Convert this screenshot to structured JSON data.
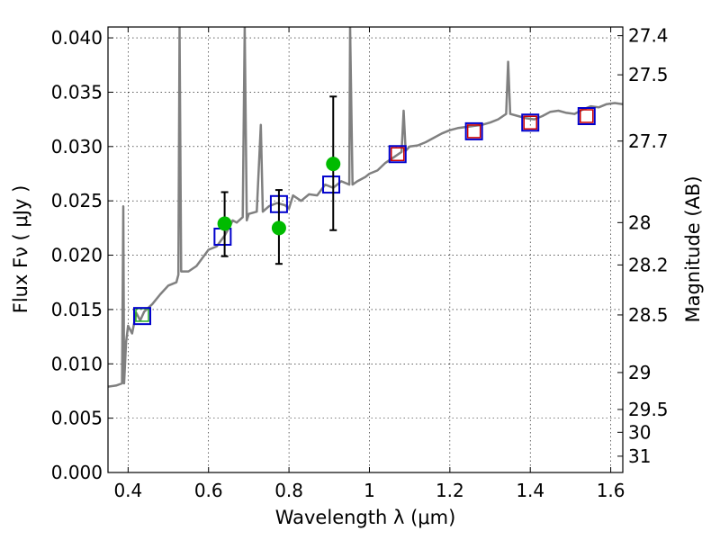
{
  "chart_data": {
    "type": "scatter",
    "xlabel": "Wavelength  λ (μm)",
    "ylabel": "Flux  Fν  ( μJy )",
    "y2label": "Magnitude (AB)",
    "xlim": [
      0.35,
      1.63
    ],
    "ylim": [
      0.0,
      0.041
    ],
    "grid": true,
    "x_ticks": [
      0.4,
      0.6,
      0.8,
      1.0,
      1.2,
      1.4,
      1.6
    ],
    "x_tick_labels": [
      "0.4",
      "0.6",
      "0.8",
      "1",
      "1.2",
      "1.4",
      "1.6"
    ],
    "y_ticks": [
      0.0,
      0.005,
      0.01,
      0.015,
      0.02,
      0.025,
      0.03,
      0.035,
      0.04
    ],
    "y_tick_labels": [
      "0.000",
      "0.005",
      "0.010",
      "0.015",
      "0.020",
      "0.025",
      "0.030",
      "0.035",
      "0.040"
    ],
    "y2_ticks": [
      {
        "label": "27.4",
        "flux": 0.0402
      },
      {
        "label": "27.5",
        "flux": 0.0366
      },
      {
        "label": "27.7",
        "flux": 0.0305
      },
      {
        "label": "28",
        "flux": 0.023
      },
      {
        "label": "28.2",
        "flux": 0.0191
      },
      {
        "label": "28.5",
        "flux": 0.0145
      },
      {
        "label": "29",
        "flux": 0.0092
      },
      {
        "label": "29.5",
        "flux": 0.0058
      },
      {
        "label": "30",
        "flux": 0.0037
      },
      {
        "label": "31",
        "flux": 0.0015
      }
    ],
    "spectrum": {
      "color": "#808080",
      "points": [
        [
          0.35,
          0.0079
        ],
        [
          0.37,
          0.008
        ],
        [
          0.385,
          0.0082
        ],
        [
          0.388,
          0.0245
        ],
        [
          0.39,
          0.0082
        ],
        [
          0.395,
          0.012
        ],
        [
          0.4,
          0.0135
        ],
        [
          0.41,
          0.0128
        ],
        [
          0.42,
          0.0147
        ],
        [
          0.43,
          0.014
        ],
        [
          0.44,
          0.0148
        ],
        [
          0.46,
          0.0155
        ],
        [
          0.48,
          0.0164
        ],
        [
          0.5,
          0.0172
        ],
        [
          0.52,
          0.0175
        ],
        [
          0.525,
          0.0182
        ],
        [
          0.528,
          0.041
        ],
        [
          0.532,
          0.0185
        ],
        [
          0.55,
          0.0185
        ],
        [
          0.57,
          0.019
        ],
        [
          0.6,
          0.0205
        ],
        [
          0.62,
          0.0208
        ],
        [
          0.64,
          0.0218
        ],
        [
          0.655,
          0.0228
        ],
        [
          0.66,
          0.0232
        ],
        [
          0.67,
          0.023
        ],
        [
          0.685,
          0.0235
        ],
        [
          0.69,
          0.041
        ],
        [
          0.695,
          0.0232
        ],
        [
          0.7,
          0.0238
        ],
        [
          0.72,
          0.024
        ],
        [
          0.73,
          0.032
        ],
        [
          0.735,
          0.024
        ],
        [
          0.75,
          0.0245
        ],
        [
          0.77,
          0.0248
        ],
        [
          0.79,
          0.0246
        ],
        [
          0.8,
          0.0243
        ],
        [
          0.81,
          0.0255
        ],
        [
          0.83,
          0.025
        ],
        [
          0.85,
          0.0256
        ],
        [
          0.87,
          0.0255
        ],
        [
          0.89,
          0.0265
        ],
        [
          0.91,
          0.0262
        ],
        [
          0.93,
          0.0268
        ],
        [
          0.95,
          0.0265
        ],
        [
          0.952,
          0.041
        ],
        [
          0.958,
          0.0265
        ],
        [
          0.97,
          0.0268
        ],
        [
          0.99,
          0.0272
        ],
        [
          1.0,
          0.0275
        ],
        [
          1.02,
          0.0278
        ],
        [
          1.04,
          0.0285
        ],
        [
          1.06,
          0.029
        ],
        [
          1.08,
          0.0295
        ],
        [
          1.085,
          0.0333
        ],
        [
          1.09,
          0.0296
        ],
        [
          1.1,
          0.03
        ],
        [
          1.12,
          0.0301
        ],
        [
          1.14,
          0.0304
        ],
        [
          1.16,
          0.0308
        ],
        [
          1.18,
          0.0312
        ],
        [
          1.2,
          0.0315
        ],
        [
          1.22,
          0.0317
        ],
        [
          1.24,
          0.0318
        ],
        [
          1.26,
          0.0319
        ],
        [
          1.28,
          0.032
        ],
        [
          1.3,
          0.0322
        ],
        [
          1.32,
          0.0325
        ],
        [
          1.34,
          0.033
        ],
        [
          1.345,
          0.0378
        ],
        [
          1.35,
          0.033
        ],
        [
          1.37,
          0.0328
        ],
        [
          1.39,
          0.0326
        ],
        [
          1.41,
          0.0325
        ],
        [
          1.43,
          0.0328
        ],
        [
          1.45,
          0.0332
        ],
        [
          1.47,
          0.0333
        ],
        [
          1.49,
          0.0331
        ],
        [
          1.51,
          0.033
        ],
        [
          1.53,
          0.0334
        ],
        [
          1.55,
          0.0337
        ],
        [
          1.57,
          0.0336
        ],
        [
          1.59,
          0.0339
        ],
        [
          1.61,
          0.034
        ],
        [
          1.63,
          0.0339
        ]
      ]
    },
    "model_photometry": {
      "marker": "open square",
      "color": "#0000cc",
      "points": [
        [
          0.435,
          0.0144
        ],
        [
          0.635,
          0.0217
        ],
        [
          0.775,
          0.0247
        ],
        [
          0.905,
          0.0265
        ],
        [
          1.07,
          0.0293
        ],
        [
          1.26,
          0.0314
        ],
        [
          1.4,
          0.0322
        ],
        [
          1.54,
          0.0328
        ]
      ]
    },
    "inner_squares": [
      {
        "x": 0.435,
        "y": 0.0145,
        "color": "#22aa22"
      },
      {
        "x": 1.07,
        "y": 0.0293,
        "color": "#cc0000"
      },
      {
        "x": 1.26,
        "y": 0.0314,
        "color": "#cc0000"
      },
      {
        "x": 1.4,
        "y": 0.0322,
        "color": "#cc0000"
      },
      {
        "x": 1.54,
        "y": 0.0328,
        "color": "#cc0000"
      }
    ],
    "observed_photometry": {
      "marker": "filled circle",
      "color": "#00bb00",
      "points": [
        {
          "x": 0.64,
          "y": 0.0229,
          "err_low": 0.0199,
          "err_high": 0.0258
        },
        {
          "x": 0.775,
          "y": 0.0225,
          "err_low": 0.0192,
          "err_high": 0.026
        },
        {
          "x": 0.91,
          "y": 0.0284,
          "err_low": 0.0223,
          "err_high": 0.0346
        }
      ]
    }
  }
}
